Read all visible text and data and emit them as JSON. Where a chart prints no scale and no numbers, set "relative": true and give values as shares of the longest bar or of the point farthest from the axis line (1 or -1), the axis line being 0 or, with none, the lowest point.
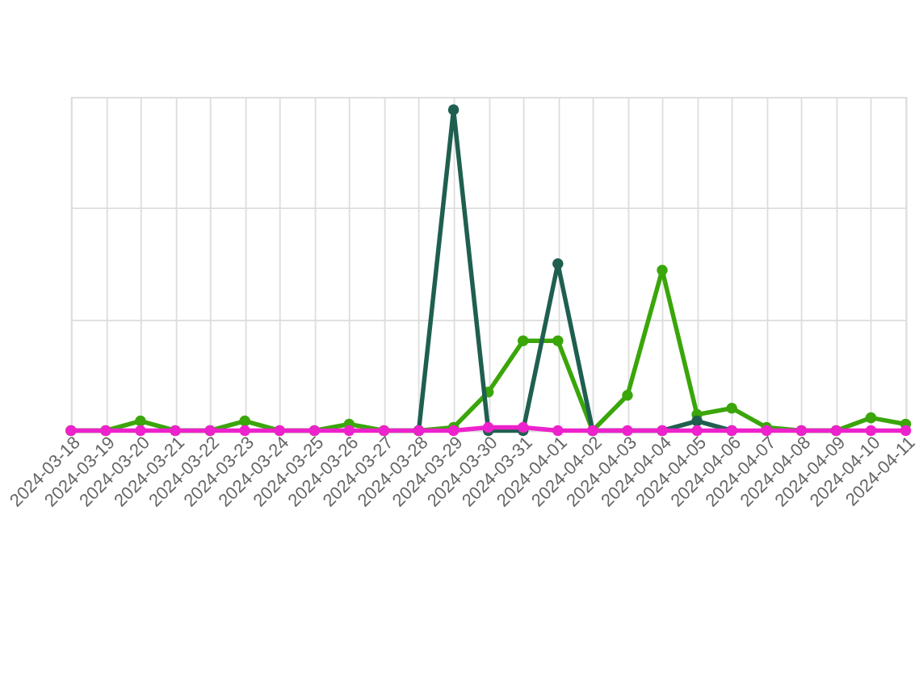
{
  "chart_data": {
    "type": "line",
    "relative": true,
    "grid": true,
    "marker": "circle",
    "line_style": "solid",
    "categories": [
      "2024-03-18",
      "2024-03-19",
      "2024-03-20",
      "2024-03-21",
      "2024-03-22",
      "2024-03-23",
      "2024-03-24",
      "2024-03-25",
      "2024-03-26",
      "2024-03-27",
      "2024-03-28",
      "2024-03-29",
      "2024-03-30",
      "2024-03-31",
      "2024-04-01",
      "2024-04-02",
      "2024-04-03",
      "2024-04-04",
      "2024-04-05",
      "2024-04-06",
      "2024-04-07",
      "2024-04-08",
      "2024-04-09",
      "2024-04-10",
      "2024-04-11"
    ],
    "series": [
      {
        "color": "#3aa60a",
        "values": [
          0,
          0,
          0.03,
          0,
          0,
          0.03,
          0,
          0,
          0.02,
          0,
          0,
          0.01,
          0.12,
          0.28,
          0.28,
          0,
          0.11,
          0.5,
          0.05,
          0.07,
          0.01,
          0,
          0,
          0.04,
          0.02
        ]
      },
      {
        "color": "#1f5f4f",
        "values": [
          null,
          null,
          null,
          null,
          null,
          null,
          null,
          null,
          null,
          null,
          0,
          1,
          0,
          0,
          0.52,
          0,
          null,
          0,
          0.03,
          0,
          null,
          null,
          null,
          null,
          null
        ]
      },
      {
        "color": "#ee22cc",
        "values": [
          0,
          0,
          0,
          0,
          0,
          0,
          0,
          0,
          0,
          0,
          0,
          0,
          0.01,
          0.01,
          0,
          0,
          0,
          0,
          0,
          0,
          0,
          0,
          0,
          0,
          0
        ]
      }
    ]
  }
}
